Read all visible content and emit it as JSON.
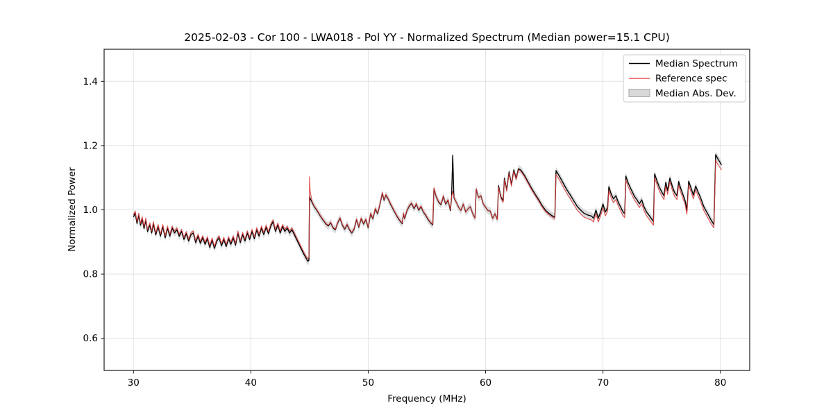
{
  "figure": {
    "title": "2025-02-03 - Cor 100 - LWA018 - Pol YY - Normalized Spectrum (Median power=15.1 CPU)"
  },
  "axes": {
    "xlabel": "Frequency (MHz)",
    "ylabel": "Normalized Power",
    "xtick_labels": [
      "30",
      "40",
      "50",
      "60",
      "70",
      "80"
    ],
    "ytick_labels": [
      "0.6",
      "0.8",
      "1.0",
      "1.2",
      "1.4"
    ]
  },
  "legend": {
    "entries": [
      {
        "label": "Median Spectrum",
        "type": "line",
        "color": "#000000"
      },
      {
        "label": "Reference spec",
        "type": "line",
        "color": "#e85050"
      },
      {
        "label": "Median Abs. Dev.",
        "type": "patch",
        "color": "#d9d9d9",
        "edge": "#a6a6a6"
      }
    ]
  },
  "colors": {
    "grid": "#e3e3e3",
    "frame": "#1a1a1a",
    "band": "#bdbdbd",
    "median_line": "#000000",
    "reference_line": "#da3b3b",
    "background": "#ffffff"
  },
  "chart_data": {
    "type": "line",
    "title": "2025-02-03 - Cor 100 - LWA018 - Pol YY - Normalized Spectrum (Median power=15.1 CPU)",
    "xlabel": "Frequency (MHz)",
    "ylabel": "Normalized Power",
    "xlim": [
      27.5,
      82.5
    ],
    "ylim": [
      0.5,
      1.5
    ],
    "xtick_values": [
      30,
      40,
      50,
      60,
      70,
      80
    ],
    "ytick_values": [
      0.6,
      0.8,
      1.0,
      1.2,
      1.4
    ],
    "grid": true,
    "legend_position": "upper right",
    "band_halfwidth": 0.012,
    "x": [
      30.0,
      30.15,
      30.3,
      30.45,
      30.6,
      30.75,
      30.9,
      31.05,
      31.2,
      31.4,
      31.55,
      31.7,
      31.9,
      32.1,
      32.3,
      32.5,
      32.7,
      32.9,
      33.1,
      33.3,
      33.5,
      33.7,
      33.9,
      34.1,
      34.3,
      34.5,
      34.7,
      34.9,
      35.1,
      35.3,
      35.5,
      35.7,
      35.9,
      36.1,
      36.3,
      36.5,
      36.7,
      36.9,
      37.1,
      37.3,
      37.5,
      37.7,
      37.9,
      38.1,
      38.3,
      38.5,
      38.7,
      38.9,
      39.1,
      39.3,
      39.5,
      39.7,
      39.9,
      40.1,
      40.3,
      40.5,
      40.7,
      40.9,
      41.1,
      41.3,
      41.5,
      41.7,
      41.9,
      42.1,
      42.3,
      42.5,
      42.7,
      42.9,
      43.1,
      43.3,
      43.5,
      43.7,
      43.9,
      44.1,
      44.3,
      44.5,
      44.7,
      44.85,
      44.95,
      45.0,
      45.05,
      45.2,
      45.4,
      45.6,
      45.8,
      46.0,
      46.2,
      46.4,
      46.6,
      46.8,
      47.0,
      47.2,
      47.4,
      47.6,
      47.8,
      48.0,
      48.2,
      48.4,
      48.6,
      48.8,
      49.0,
      49.2,
      49.4,
      49.6,
      49.8,
      50.0,
      50.2,
      50.4,
      50.6,
      50.8,
      51.0,
      51.2,
      51.35,
      51.5,
      51.7,
      51.9,
      52.1,
      52.3,
      52.5,
      52.7,
      52.9,
      53.0,
      53.1,
      53.3,
      53.5,
      53.7,
      53.9,
      54.1,
      54.3,
      54.5,
      54.7,
      54.9,
      55.1,
      55.3,
      55.5,
      55.6,
      55.8,
      56.0,
      56.2,
      56.4,
      56.6,
      56.8,
      57.0,
      57.1,
      57.2,
      57.3,
      57.5,
      57.7,
      57.9,
      58.1,
      58.3,
      58.5,
      58.7,
      58.9,
      59.1,
      59.2,
      59.4,
      59.6,
      59.8,
      60.0,
      60.2,
      60.4,
      60.6,
      60.8,
      61.0,
      61.1,
      61.3,
      61.5,
      61.6,
      61.8,
      62.0,
      62.2,
      62.4,
      62.6,
      62.8,
      63.0,
      63.3,
      63.6,
      63.9,
      64.2,
      64.5,
      64.8,
      65.1,
      65.4,
      65.7,
      65.9,
      66.0,
      66.3,
      66.6,
      66.9,
      67.2,
      67.5,
      67.8,
      68.1,
      68.4,
      68.7,
      69.0,
      69.2,
      69.4,
      69.6,
      69.8,
      70.0,
      70.2,
      70.4,
      70.5,
      70.7,
      70.9,
      71.1,
      71.3,
      71.5,
      71.7,
      71.85,
      71.95,
      72.1,
      72.3,
      72.5,
      72.7,
      72.9,
      73.1,
      73.3,
      73.5,
      73.7,
      73.9,
      74.1,
      74.3,
      74.4,
      74.6,
      74.8,
      75.0,
      75.2,
      75.35,
      75.5,
      75.7,
      75.9,
      76.1,
      76.3,
      76.45,
      76.6,
      76.8,
      77.0,
      77.15,
      77.3,
      77.5,
      77.7,
      77.9,
      78.05,
      78.3,
      78.6,
      78.9,
      79.2,
      79.45,
      79.6,
      79.8,
      80.0,
      80.1
    ],
    "series": [
      {
        "name": "Median Spectrum",
        "color": "#000000",
        "values": [
          0.978,
          0.99,
          0.958,
          0.983,
          0.952,
          0.972,
          0.942,
          0.968,
          0.933,
          0.953,
          0.928,
          0.957,
          0.922,
          0.948,
          0.918,
          0.948,
          0.913,
          0.943,
          0.918,
          0.943,
          0.928,
          0.938,
          0.918,
          0.933,
          0.908,
          0.926,
          0.903,
          0.923,
          0.928,
          0.898,
          0.918,
          0.896,
          0.913,
          0.893,
          0.91,
          0.883,
          0.906,
          0.88,
          0.903,
          0.913,
          0.888,
          0.908,
          0.886,
          0.91,
          0.893,
          0.913,
          0.89,
          0.928,
          0.898,
          0.923,
          0.903,
          0.928,
          0.908,
          0.933,
          0.91,
          0.938,
          0.918,
          0.943,
          0.923,
          0.946,
          0.926,
          0.95,
          0.963,
          0.933,
          0.953,
          0.928,
          0.948,
          0.933,
          0.943,
          0.928,
          0.938,
          0.923,
          0.908,
          0.893,
          0.878,
          0.863,
          0.85,
          0.84,
          0.843,
          1.04,
          1.035,
          1.025,
          1.01,
          1.0,
          0.988,
          0.976,
          0.966,
          0.956,
          0.95,
          0.96,
          0.944,
          0.938,
          0.96,
          0.974,
          0.952,
          0.94,
          0.954,
          0.938,
          0.928,
          0.94,
          0.97,
          0.946,
          0.973,
          0.956,
          0.97,
          0.944,
          0.988,
          0.972,
          1.003,
          0.988,
          1.018,
          1.052,
          1.03,
          1.046,
          1.034,
          1.018,
          1.004,
          0.99,
          0.977,
          0.966,
          0.957,
          0.988,
          0.973,
          0.998,
          1.012,
          1.02,
          1.004,
          1.018,
          0.999,
          1.01,
          0.993,
          0.983,
          0.97,
          0.96,
          0.953,
          1.066,
          1.04,
          1.024,
          1.016,
          1.042,
          1.018,
          1.03,
          0.998,
          1.038,
          1.17,
          1.038,
          1.024,
          1.008,
          0.998,
          1.018,
          0.993,
          1.003,
          1.01,
          0.988,
          0.974,
          1.065,
          1.038,
          1.044,
          1.018,
          1.008,
          0.998,
          0.996,
          0.973,
          0.988,
          0.97,
          1.075,
          1.04,
          1.028,
          1.098,
          1.062,
          1.118,
          1.078,
          1.124,
          1.098,
          1.128,
          1.124,
          1.108,
          1.088,
          1.068,
          1.05,
          1.033,
          1.014,
          0.999,
          0.989,
          0.981,
          0.977,
          1.122,
          1.104,
          1.084,
          1.064,
          1.047,
          1.029,
          1.011,
          0.999,
          0.989,
          0.984,
          0.981,
          0.974,
          0.999,
          0.974,
          0.993,
          1.018,
          0.993,
          1.008,
          1.072,
          1.049,
          1.034,
          1.044,
          1.024,
          1.009,
          0.994,
          0.988,
          1.105,
          1.088,
          1.071,
          1.056,
          1.041,
          1.031,
          1.019,
          1.031,
          1.009,
          0.994,
          0.984,
          0.974,
          0.964,
          1.112,
          1.09,
          1.071,
          1.056,
          1.044,
          1.086,
          1.06,
          1.099,
          1.074,
          1.054,
          1.044,
          1.088,
          1.069,
          1.049,
          1.028,
          0.998,
          1.089,
          1.068,
          1.046,
          1.074,
          1.06,
          1.039,
          1.009,
          0.989,
          0.969,
          0.954,
          1.172,
          1.158,
          1.146,
          1.14
        ]
      },
      {
        "name": "Reference spec",
        "color": "#da3b3b",
        "values": [
          0.984,
          0.996,
          0.964,
          0.989,
          0.958,
          0.978,
          0.948,
          0.974,
          0.939,
          0.959,
          0.934,
          0.963,
          0.928,
          0.954,
          0.924,
          0.954,
          0.919,
          0.949,
          0.924,
          0.949,
          0.934,
          0.944,
          0.924,
          0.939,
          0.914,
          0.932,
          0.909,
          0.929,
          0.934,
          0.904,
          0.924,
          0.902,
          0.919,
          0.899,
          0.916,
          0.889,
          0.912,
          0.886,
          0.909,
          0.919,
          0.894,
          0.914,
          0.892,
          0.916,
          0.899,
          0.919,
          0.896,
          0.934,
          0.904,
          0.929,
          0.909,
          0.934,
          0.914,
          0.939,
          0.916,
          0.944,
          0.924,
          0.949,
          0.929,
          0.952,
          0.932,
          0.956,
          0.969,
          0.939,
          0.959,
          0.934,
          0.954,
          0.939,
          0.949,
          0.934,
          0.944,
          0.929,
          0.914,
          0.899,
          0.884,
          0.869,
          0.856,
          0.848,
          0.852,
          1.103,
          1.06,
          1.028,
          1.012,
          1.002,
          0.99,
          0.978,
          0.968,
          0.958,
          0.952,
          0.962,
          0.946,
          0.94,
          0.962,
          0.976,
          0.954,
          0.942,
          0.956,
          0.94,
          0.93,
          0.942,
          0.972,
          0.948,
          0.975,
          0.958,
          0.972,
          0.946,
          0.99,
          0.974,
          1.005,
          0.99,
          1.02,
          1.054,
          1.032,
          1.048,
          1.036,
          1.02,
          1.006,
          0.992,
          0.979,
          0.968,
          0.959,
          0.99,
          0.975,
          1.0,
          1.014,
          1.022,
          1.006,
          1.02,
          1.001,
          1.012,
          0.995,
          0.985,
          0.972,
          0.962,
          0.955,
          1.068,
          1.042,
          1.026,
          1.018,
          1.044,
          1.02,
          1.032,
          1.0,
          1.04,
          1.058,
          1.04,
          1.024,
          1.008,
          0.998,
          1.018,
          0.993,
          1.003,
          1.01,
          0.988,
          0.974,
          1.065,
          1.038,
          1.044,
          1.018,
          1.008,
          0.998,
          0.996,
          0.973,
          0.988,
          0.97,
          1.071,
          1.036,
          1.024,
          1.094,
          1.058,
          1.114,
          1.074,
          1.12,
          1.094,
          1.124,
          1.12,
          1.104,
          1.084,
          1.064,
          1.046,
          1.029,
          1.01,
          0.995,
          0.985,
          0.977,
          0.973,
          1.11,
          1.092,
          1.072,
          1.052,
          1.035,
          1.017,
          0.999,
          0.987,
          0.977,
          0.972,
          0.969,
          0.962,
          0.987,
          0.962,
          0.981,
          1.006,
          0.981,
          0.996,
          1.06,
          1.037,
          1.022,
          1.032,
          1.012,
          0.997,
          0.982,
          0.976,
          1.093,
          1.076,
          1.059,
          1.044,
          1.029,
          1.019,
          1.007,
          1.019,
          0.997,
          0.982,
          0.972,
          0.962,
          0.952,
          1.1,
          1.078,
          1.059,
          1.044,
          1.032,
          1.074,
          1.048,
          1.087,
          1.062,
          1.042,
          1.032,
          1.076,
          1.057,
          1.037,
          1.016,
          0.986,
          1.077,
          1.056,
          1.034,
          1.062,
          1.048,
          1.027,
          0.997,
          0.977,
          0.957,
          0.944,
          1.155,
          1.14,
          1.13,
          1.124
        ]
      },
      {
        "name": "Median Abs. Dev.",
        "type": "band",
        "band_around": "Median Spectrum",
        "halfwidth": 0.012,
        "color": "#bdbdbd"
      }
    ]
  }
}
